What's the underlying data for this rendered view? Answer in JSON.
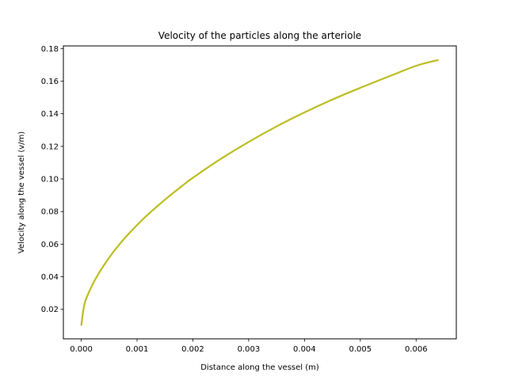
{
  "chart_data": {
    "type": "line",
    "title": "Velocity of the particles along the arteriole",
    "xlabel": "Distance along the vessel (m)",
    "ylabel": "Velocity along the vessel (v/m)",
    "xlim": [
      -0.00032,
      0.00672
    ],
    "ylim": [
      0.0019,
      0.1816
    ],
    "xticks": [
      {
        "value": 0.0,
        "label": "0.000"
      },
      {
        "value": 0.001,
        "label": "0.001"
      },
      {
        "value": 0.002,
        "label": "0.002"
      },
      {
        "value": 0.003,
        "label": "0.003"
      },
      {
        "value": 0.004,
        "label": "0.004"
      },
      {
        "value": 0.005,
        "label": "0.005"
      },
      {
        "value": 0.006,
        "label": "0.006"
      }
    ],
    "yticks": [
      {
        "value": 0.02,
        "label": "0.02"
      },
      {
        "value": 0.04,
        "label": "0.04"
      },
      {
        "value": 0.06,
        "label": "0.06"
      },
      {
        "value": 0.08,
        "label": "0.08"
      },
      {
        "value": 0.1,
        "label": "0.10"
      },
      {
        "value": 0.12,
        "label": "0.12"
      },
      {
        "value": 0.14,
        "label": "0.14"
      },
      {
        "value": 0.16,
        "label": "0.16"
      },
      {
        "value": 0.18,
        "label": "0.18"
      }
    ],
    "grid": false,
    "series": [
      {
        "color": "#bcbd22",
        "x": [
          0.0,
          5e-05,
          0.0001,
          0.0002,
          0.0003,
          0.0004,
          0.0005,
          0.0006,
          0.0007,
          0.0008,
          0.001,
          0.0012,
          0.0015,
          0.0018,
          0.002,
          0.0025,
          0.003,
          0.0035,
          0.004,
          0.0045,
          0.005,
          0.0055,
          0.006,
          0.0064
        ],
        "y": [
          0.01,
          0.022,
          0.0275,
          0.035,
          0.0413,
          0.0467,
          0.0517,
          0.0563,
          0.0605,
          0.0645,
          0.0717,
          0.0783,
          0.0873,
          0.0955,
          0.1007,
          0.1123,
          0.1227,
          0.1322,
          0.1408,
          0.1487,
          0.1559,
          0.1627,
          0.1694,
          0.173
        ]
      }
    ]
  }
}
